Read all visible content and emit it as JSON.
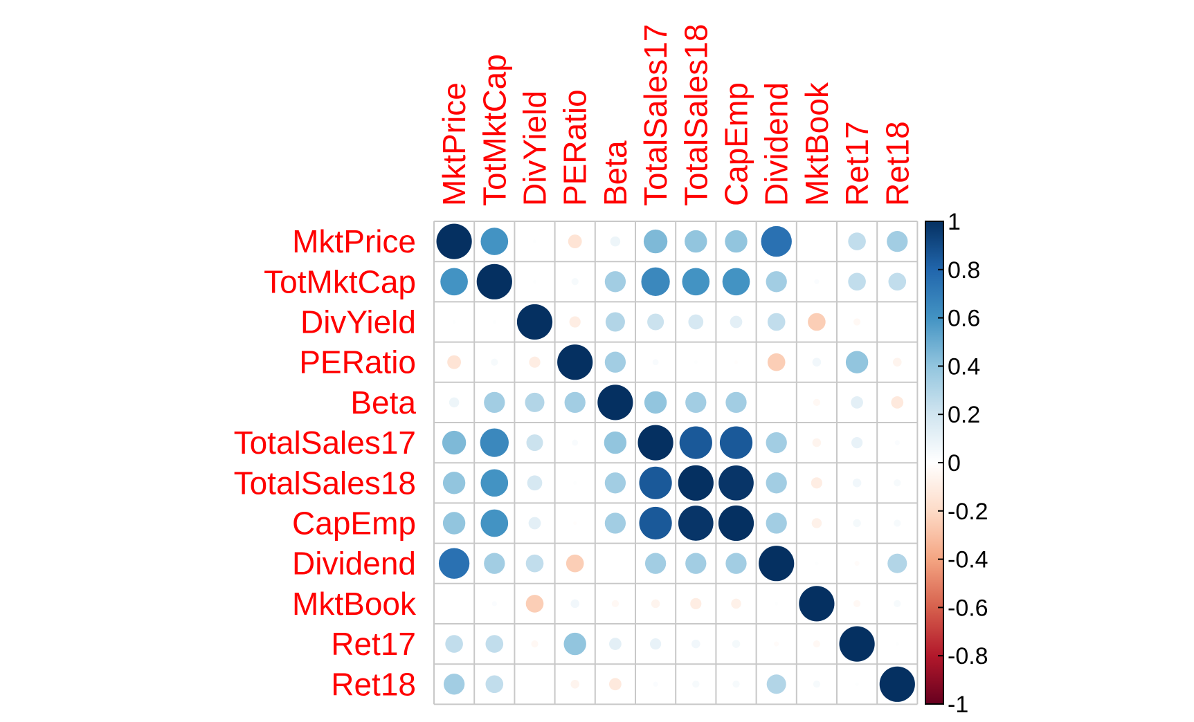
{
  "chart_data": {
    "type": "heatmap",
    "title": "",
    "variables": [
      "MktPrice",
      "TotMktCap",
      "DivYield",
      "PERatio",
      "Beta",
      "TotalSales17",
      "TotalSales18",
      "CapEmp",
      "Dividend",
      "MktBook",
      "Ret17",
      "Ret18"
    ],
    "matrix": [
      [
        1.0,
        0.6,
        0.01,
        -0.15,
        0.08,
        0.45,
        0.4,
        0.4,
        0.75,
        0.0,
        0.25,
        0.35
      ],
      [
        0.6,
        1.0,
        0.01,
        0.04,
        0.35,
        0.65,
        0.6,
        0.6,
        0.35,
        0.02,
        0.25,
        0.25
      ],
      [
        0.01,
        0.01,
        1.0,
        -0.1,
        0.3,
        0.22,
        0.18,
        0.12,
        0.25,
        -0.25,
        -0.04,
        0.0
      ],
      [
        -0.15,
        0.04,
        -0.1,
        1.0,
        0.35,
        0.03,
        0.01,
        -0.01,
        -0.25,
        0.06,
        0.4,
        -0.06
      ],
      [
        0.08,
        0.35,
        0.3,
        0.35,
        1.0,
        0.4,
        0.35,
        0.35,
        0.0,
        -0.04,
        0.12,
        -0.12
      ],
      [
        0.45,
        0.65,
        0.22,
        0.03,
        0.4,
        1.0,
        0.85,
        0.85,
        0.35,
        -0.06,
        0.1,
        0.02
      ],
      [
        0.4,
        0.6,
        0.18,
        0.01,
        0.35,
        0.85,
        1.0,
        0.98,
        0.35,
        -0.1,
        0.06,
        0.04
      ],
      [
        0.4,
        0.6,
        0.12,
        -0.01,
        0.35,
        0.85,
        0.98,
        1.0,
        0.35,
        -0.08,
        0.05,
        0.04
      ],
      [
        0.75,
        0.35,
        0.25,
        -0.25,
        0.0,
        0.35,
        0.35,
        0.35,
        1.0,
        0.01,
        -0.02,
        0.3
      ],
      [
        0.0,
        0.02,
        -0.25,
        0.06,
        -0.04,
        -0.06,
        -0.1,
        -0.08,
        0.01,
        1.0,
        -0.04,
        0.04
      ],
      [
        0.25,
        0.25,
        -0.04,
        0.4,
        0.12,
        0.1,
        0.06,
        0.05,
        -0.02,
        -0.04,
        1.0,
        0.01
      ],
      [
        0.35,
        0.25,
        0.0,
        -0.06,
        -0.12,
        0.02,
        0.04,
        0.04,
        0.3,
        0.04,
        0.01,
        1.0
      ]
    ],
    "colorbar": {
      "ticks": [
        "1",
        "0.8",
        "0.6",
        "0.4",
        "0.2",
        "0",
        "-0.2",
        "-0.4",
        "-0.6",
        "-0.8",
        "-1"
      ],
      "range": [
        -1,
        1
      ]
    },
    "label_color": "#ff0000",
    "grid_color": "#c8c8c8",
    "palette": [
      "#67001f",
      "#b2182b",
      "#d6604d",
      "#f4a582",
      "#fddbc7",
      "#ffffff",
      "#d1e5f0",
      "#92c5de",
      "#4393c3",
      "#2166ac",
      "#053061"
    ]
  }
}
